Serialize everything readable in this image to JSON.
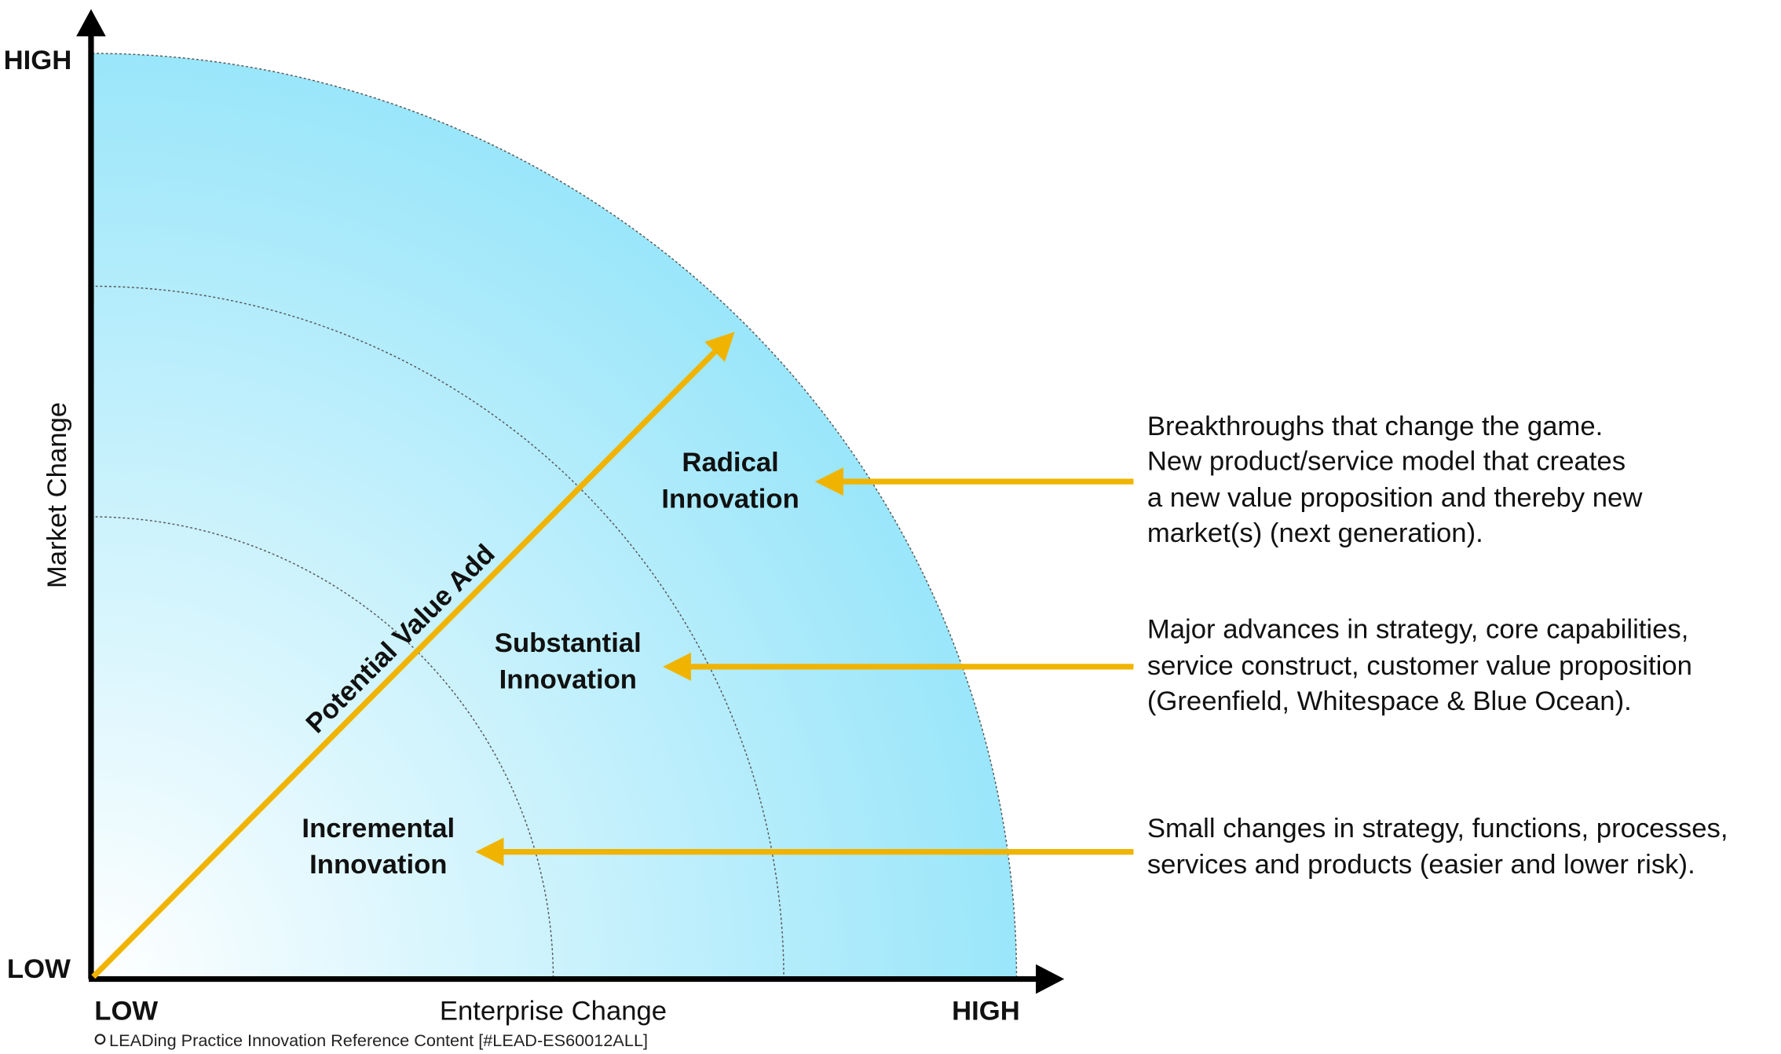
{
  "axes": {
    "y_label": "Market Change",
    "x_label": "Enterprise Change",
    "y_high": "HIGH",
    "y_low": "LOW",
    "x_low": "LOW",
    "x_high": "HIGH"
  },
  "diagonal_label": "Potential Value Add",
  "levels": [
    {
      "label": [
        "Radical",
        "Innovation"
      ],
      "description": [
        "Breakthroughs that change the game.",
        "New product/service model that creates",
        "a new value proposition and thereby new",
        "market(s) (next generation)."
      ]
    },
    {
      "label": [
        "Substantial",
        "Innovation"
      ],
      "description": [
        "Major advances in strategy, core capabilities,",
        "service construct, customer value proposition",
        "(Greenfield, Whitespace & Blue Ocean)."
      ]
    },
    {
      "label": [
        "Incremental",
        "Innovation"
      ],
      "description": [
        "Small changes in strategy, functions, processes,",
        "services and products (easier and lower risk)."
      ]
    }
  ],
  "footer": "LEADing Practice Innovation Reference Content [#LEAD-ES60012ALL]"
}
